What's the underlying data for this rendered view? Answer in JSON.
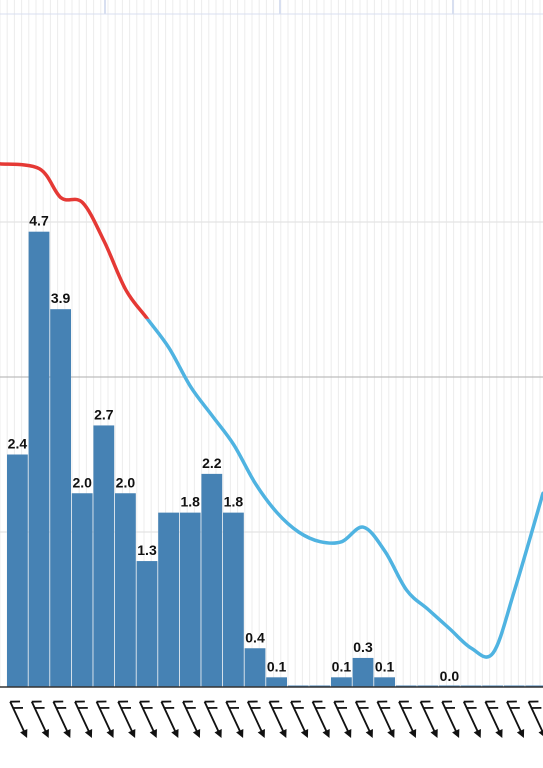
{
  "chart_data": {
    "type": "bar",
    "title": "",
    "xlabel": "",
    "ylabel": "",
    "ylim": [
      0,
      6.4
    ],
    "grid": true,
    "bar_color": "#4682b4",
    "line_color_above": "#e53935",
    "line_color_below": "#4fb3e1",
    "values": [
      2.4,
      4.7,
      3.9,
      2.0,
      2.7,
      2.0,
      1.3,
      1.8,
      1.8,
      2.2,
      1.8,
      0.4,
      0.1,
      0.0,
      0.0,
      0.1,
      0.3,
      0.1,
      0.0,
      0.0,
      0.0,
      0.0,
      0.0,
      0.0,
      0.0
    ],
    "data_labels": [
      "2.4",
      "4.7",
      "3.9",
      "2.0",
      "2.7",
      "2.0",
      "1.3",
      "",
      "1.8",
      "2.2",
      "1.8",
      "0.4",
      "0.1",
      "",
      "",
      "0.1",
      "0.3",
      "0.1",
      "",
      "",
      "0.0",
      "",
      "",
      "",
      ""
    ],
    "series": [
      {
        "type": "line",
        "values": [
          5.4,
          5.35,
          5.05,
          5.0,
          4.6,
          4.1,
          3.8,
          3.5,
          3.1,
          2.8,
          2.5,
          2.1,
          1.8,
          1.6,
          1.5,
          1.5,
          1.65,
          1.4,
          1.0,
          0.8,
          0.6,
          0.4,
          0.35,
          1.0,
          2.0
        ],
        "threshold": 3.8
      }
    ],
    "wind_direction": "N",
    "wind_barbs_count": 25
  }
}
